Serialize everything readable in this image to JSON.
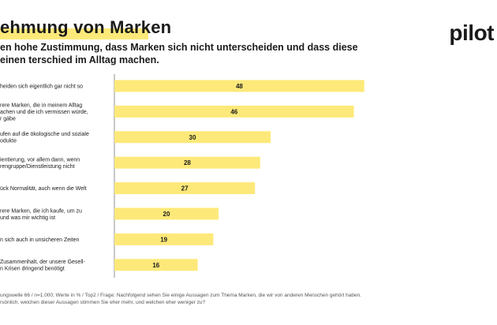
{
  "header": {
    "title": "ehmung von Marken",
    "subtitle": "en hohe Zustimmung, dass Marken sich nicht unterscheiden und dass diese einen terschied im Alltag machen.",
    "logo": "pilot"
  },
  "colors": {
    "bar": "#fde979",
    "highlight": "#fde979",
    "axis": "#777777",
    "text": "#1a1a1a"
  },
  "chart_data": {
    "type": "bar",
    "orientation": "horizontal",
    "categories": [
      [
        "heiden sich eigentlich gar nicht so"
      ],
      [
        "rere Marken, die in meinem Alltag",
        "achen und die ich vermissen würde,",
        "r gäbe"
      ],
      [
        "ufen auf die ökologische und soziale",
        "odukte"
      ],
      [
        "ientierung, vor allem dann, wenn",
        "rengruppe/Dienstleistung nicht"
      ],
      [
        "ück Normalität, auch wenn die Welt"
      ],
      [
        "rere Marken, die ich kaufe, um zu",
        "und was mir wichtig ist"
      ],
      [
        "n sich auch in unsicheren Zeiten"
      ],
      [
        "Zusammenhalt, der unsere Gesell-",
        "n Krisen dringend benötigt"
      ]
    ],
    "values": [
      48,
      46,
      30,
      28,
      27,
      20,
      19,
      16
    ],
    "xlim": [
      0,
      50
    ],
    "grid": false,
    "legend": "none"
  },
  "footnote": "ungswelle 66 / n=1.000; Werte in % / Top2 / Frage: Nachfolgend sehen Sie einige Aussagen zum Thema Marken, die wir von anderen Menschen gehört haben. rsönlich, welchen dieser Aussagen stimmen Sie eher mehr, und welchen eher weniger zu?"
}
